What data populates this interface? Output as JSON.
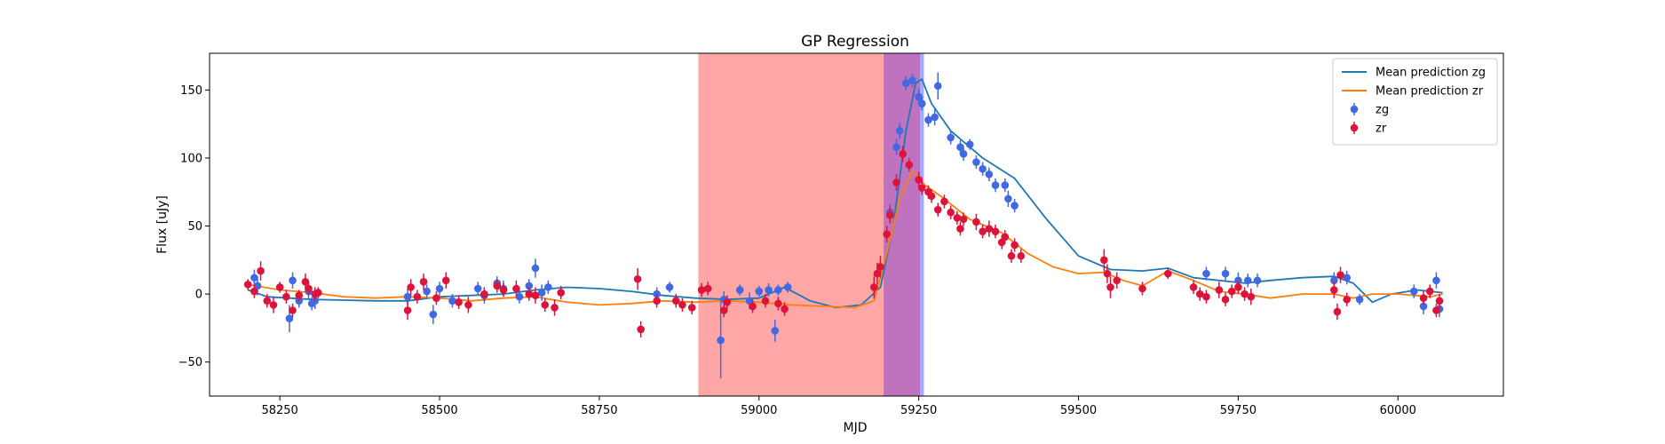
{
  "chart_data": {
    "type": "scatter",
    "title": "GP Regression",
    "xlabel": "MJD",
    "ylabel": "Flux [uJy]",
    "xlim": [
      58140,
      60165
    ],
    "ylim": [
      -75,
      177
    ],
    "xticks": [
      58250,
      58500,
      58750,
      59000,
      59250,
      59500,
      59750,
      60000
    ],
    "yticks": [
      -50,
      0,
      50,
      100,
      150
    ],
    "grid": false,
    "legend_position": "top-right",
    "shaded_regions": [
      {
        "x0": 58905,
        "x1": 59195,
        "color": "#ff0000",
        "opacity": 0.35
      },
      {
        "x0": 59195,
        "x1": 59252,
        "color": "#8b008b",
        "opacity": 0.55
      },
      {
        "x0": 59252,
        "x1": 59258,
        "color": "#6a6aff",
        "opacity": 0.6
      }
    ],
    "lines": [
      {
        "name": "Mean prediction zg",
        "color": "#1f77b4",
        "points": [
          [
            58200,
            3
          ],
          [
            58230,
            -2
          ],
          [
            58300,
            -4
          ],
          [
            58400,
            -5
          ],
          [
            58450,
            -5
          ],
          [
            58500,
            -2
          ],
          [
            58550,
            -1
          ],
          [
            58600,
            0
          ],
          [
            58650,
            3
          ],
          [
            58700,
            5
          ],
          [
            58750,
            4
          ],
          [
            58800,
            2
          ],
          [
            58850,
            -1
          ],
          [
            58900,
            -3
          ],
          [
            58950,
            -4
          ],
          [
            59000,
            -3
          ],
          [
            59040,
            5
          ],
          [
            59080,
            -5
          ],
          [
            59120,
            -10
          ],
          [
            59160,
            -8
          ],
          [
            59190,
            5
          ],
          [
            59210,
            50
          ],
          [
            59230,
            120
          ],
          [
            59245,
            155
          ],
          [
            59255,
            158
          ],
          [
            59270,
            140
          ],
          [
            59300,
            120
          ],
          [
            59350,
            100
          ],
          [
            59400,
            85
          ],
          [
            59450,
            55
          ],
          [
            59500,
            28
          ],
          [
            59550,
            18
          ],
          [
            59600,
            17
          ],
          [
            59640,
            19
          ],
          [
            59680,
            12
          ],
          [
            59720,
            10
          ],
          [
            59760,
            8
          ],
          [
            59800,
            10
          ],
          [
            59850,
            12
          ],
          [
            59900,
            13
          ],
          [
            59930,
            8
          ],
          [
            59960,
            -6
          ],
          [
            59990,
            0
          ],
          [
            60030,
            3
          ],
          [
            60070,
            1
          ]
        ]
      },
      {
        "name": "Mean prediction zr",
        "color": "#ff7f0e",
        "points": [
          [
            58200,
            7
          ],
          [
            58250,
            3
          ],
          [
            58300,
            1
          ],
          [
            58350,
            -2
          ],
          [
            58400,
            -3
          ],
          [
            58450,
            -2
          ],
          [
            58500,
            -3
          ],
          [
            58550,
            -5
          ],
          [
            58600,
            -3
          ],
          [
            58650,
            -2
          ],
          [
            58700,
            -6
          ],
          [
            58750,
            -8
          ],
          [
            58800,
            -7
          ],
          [
            58850,
            -5
          ],
          [
            58900,
            -6
          ],
          [
            58950,
            -5
          ],
          [
            59000,
            -6
          ],
          [
            59050,
            -8
          ],
          [
            59100,
            -9
          ],
          [
            59150,
            -10
          ],
          [
            59180,
            -5
          ],
          [
            59200,
            30
          ],
          [
            59220,
            70
          ],
          [
            59240,
            90
          ],
          [
            59260,
            80
          ],
          [
            59290,
            70
          ],
          [
            59330,
            55
          ],
          [
            59380,
            45
          ],
          [
            59420,
            30
          ],
          [
            59460,
            20
          ],
          [
            59500,
            15
          ],
          [
            59540,
            16
          ],
          [
            59570,
            10
          ],
          [
            59600,
            6
          ],
          [
            59640,
            17
          ],
          [
            59680,
            10
          ],
          [
            59720,
            2
          ],
          [
            59760,
            0
          ],
          [
            59800,
            -3
          ],
          [
            59850,
            0
          ],
          [
            59900,
            0
          ],
          [
            59930,
            -3
          ],
          [
            59960,
            0
          ],
          [
            60000,
            0
          ],
          [
            60050,
            -2
          ],
          [
            60070,
            0
          ]
        ]
      }
    ],
    "series": [
      {
        "name": "zg",
        "color": "#4169e1",
        "points": [
          [
            58210,
            12,
            6
          ],
          [
            58215,
            6,
            7
          ],
          [
            58265,
            -18,
            10
          ],
          [
            58270,
            10,
            6
          ],
          [
            58280,
            -5,
            5
          ],
          [
            58295,
            2,
            6
          ],
          [
            58300,
            -7,
            5
          ],
          [
            58305,
            -5,
            6
          ],
          [
            58450,
            -2,
            6
          ],
          [
            58480,
            2,
            5
          ],
          [
            58490,
            -15,
            7
          ],
          [
            58500,
            4,
            5
          ],
          [
            58520,
            -5,
            5
          ],
          [
            58560,
            4,
            5
          ],
          [
            58570,
            -1,
            6
          ],
          [
            58590,
            8,
            5
          ],
          [
            58600,
            4,
            6
          ],
          [
            58625,
            -2,
            5
          ],
          [
            58640,
            6,
            5
          ],
          [
            58650,
            19,
            7
          ],
          [
            58660,
            1,
            6
          ],
          [
            58670,
            5,
            5
          ],
          [
            58840,
            0,
            5
          ],
          [
            58860,
            5,
            4
          ],
          [
            58940,
            -34,
            28
          ],
          [
            58945,
            -4,
            6
          ],
          [
            58970,
            3,
            4
          ],
          [
            58985,
            -5,
            6
          ],
          [
            59000,
            2,
            4
          ],
          [
            59015,
            3,
            5
          ],
          [
            59025,
            -27,
            8
          ],
          [
            59030,
            3,
            4
          ],
          [
            59045,
            5,
            4
          ],
          [
            59205,
            60,
            6
          ],
          [
            59215,
            108,
            6
          ],
          [
            59220,
            120,
            6
          ],
          [
            59230,
            155,
            5
          ],
          [
            59240,
            157,
            5
          ],
          [
            59250,
            145,
            6
          ],
          [
            59255,
            140,
            5
          ],
          [
            59265,
            128,
            5
          ],
          [
            59275,
            130,
            6
          ],
          [
            59280,
            153,
            10
          ],
          [
            59300,
            115,
            5
          ],
          [
            59315,
            108,
            5
          ],
          [
            59320,
            103,
            5
          ],
          [
            59330,
            110,
            4
          ],
          [
            59340,
            97,
            5
          ],
          [
            59350,
            92,
            5
          ],
          [
            59360,
            88,
            5
          ],
          [
            59370,
            80,
            5
          ],
          [
            59385,
            80,
            5
          ],
          [
            59390,
            70,
            6
          ],
          [
            59400,
            65,
            5
          ],
          [
            59700,
            15,
            5
          ],
          [
            59730,
            15,
            5
          ],
          [
            59750,
            10,
            6
          ],
          [
            59765,
            10,
            5
          ],
          [
            59780,
            10,
            5
          ],
          [
            59900,
            10,
            6
          ],
          [
            59920,
            12,
            5
          ],
          [
            59940,
            -4,
            4
          ],
          [
            60025,
            2,
            5
          ],
          [
            60040,
            -9,
            6
          ],
          [
            60060,
            10,
            6
          ],
          [
            60065,
            -11,
            6
          ]
        ]
      },
      {
        "name": "zr",
        "color": "#dc143c",
        "points": [
          [
            58200,
            7,
            4
          ],
          [
            58210,
            2,
            5
          ],
          [
            58220,
            17,
            7
          ],
          [
            58230,
            -5,
            5
          ],
          [
            58240,
            -8,
            6
          ],
          [
            58250,
            5,
            4
          ],
          [
            58260,
            -2,
            5
          ],
          [
            58270,
            -12,
            5
          ],
          [
            58280,
            -1,
            4
          ],
          [
            58290,
            9,
            6
          ],
          [
            58295,
            4,
            5
          ],
          [
            58305,
            0,
            5
          ],
          [
            58310,
            1,
            4
          ],
          [
            58450,
            -12,
            7
          ],
          [
            58455,
            5,
            6
          ],
          [
            58465,
            -2,
            5
          ],
          [
            58475,
            9,
            6
          ],
          [
            58495,
            -3,
            5
          ],
          [
            58510,
            10,
            6
          ],
          [
            58530,
            -6,
            5
          ],
          [
            58545,
            -8,
            6
          ],
          [
            58570,
            0,
            5
          ],
          [
            58590,
            6,
            5
          ],
          [
            58600,
            3,
            5
          ],
          [
            58620,
            4,
            6
          ],
          [
            58640,
            0,
            5
          ],
          [
            58650,
            -1,
            6
          ],
          [
            58665,
            -8,
            5
          ],
          [
            58680,
            -10,
            6
          ],
          [
            58690,
            1,
            5
          ],
          [
            58810,
            11,
            8
          ],
          [
            58815,
            -26,
            6
          ],
          [
            58840,
            -5,
            5
          ],
          [
            58870,
            -5,
            5
          ],
          [
            58880,
            -8,
            5
          ],
          [
            58895,
            -10,
            5
          ],
          [
            58910,
            3,
            5
          ],
          [
            58920,
            4,
            5
          ],
          [
            58945,
            -12,
            5
          ],
          [
            58950,
            -6,
            5
          ],
          [
            58990,
            -9,
            5
          ],
          [
            59010,
            -5,
            5
          ],
          [
            59030,
            -7,
            5
          ],
          [
            59040,
            -11,
            5
          ],
          [
            59180,
            5,
            8
          ],
          [
            59185,
            15,
            8
          ],
          [
            59190,
            20,
            8
          ],
          [
            59200,
            44,
            6
          ],
          [
            59205,
            58,
            6
          ],
          [
            59215,
            82,
            6
          ],
          [
            59225,
            103,
            6
          ],
          [
            59235,
            95,
            5
          ],
          [
            59250,
            84,
            6
          ],
          [
            59255,
            78,
            5
          ],
          [
            59265,
            75,
            5
          ],
          [
            59270,
            72,
            5
          ],
          [
            59280,
            62,
            5
          ],
          [
            59290,
            68,
            5
          ],
          [
            59300,
            60,
            5
          ],
          [
            59310,
            56,
            5
          ],
          [
            59315,
            48,
            5
          ],
          [
            59320,
            55,
            5
          ],
          [
            59340,
            53,
            6
          ],
          [
            59350,
            46,
            5
          ],
          [
            59360,
            48,
            6
          ],
          [
            59370,
            46,
            5
          ],
          [
            59380,
            38,
            5
          ],
          [
            59385,
            42,
            5
          ],
          [
            59395,
            28,
            5
          ],
          [
            59400,
            36,
            5
          ],
          [
            59410,
            28,
            5
          ],
          [
            59540,
            25,
            8
          ],
          [
            59545,
            15,
            7
          ],
          [
            59550,
            5,
            8
          ],
          [
            59560,
            10,
            6
          ],
          [
            59600,
            4,
            5
          ],
          [
            59640,
            15,
            4
          ],
          [
            59680,
            5,
            5
          ],
          [
            59690,
            0,
            5
          ],
          [
            59700,
            -2,
            5
          ],
          [
            59720,
            3,
            6
          ],
          [
            59730,
            -4,
            5
          ],
          [
            59740,
            2,
            5
          ],
          [
            59750,
            5,
            5
          ],
          [
            59760,
            0,
            5
          ],
          [
            59770,
            -2,
            6
          ],
          [
            59900,
            3,
            6
          ],
          [
            59905,
            -13,
            6
          ],
          [
            59910,
            14,
            6
          ],
          [
            59920,
            -4,
            5
          ],
          [
            60040,
            -3,
            5
          ],
          [
            60050,
            2,
            5
          ],
          [
            60060,
            -12,
            5
          ],
          [
            60065,
            -5,
            5
          ]
        ]
      }
    ],
    "legend": [
      {
        "label": "Mean prediction zg",
        "kind": "line",
        "color": "#1f77b4"
      },
      {
        "label": "Mean prediction zr",
        "kind": "line",
        "color": "#ff7f0e"
      },
      {
        "label": "zg",
        "kind": "errorbar",
        "color": "#4169e1"
      },
      {
        "label": "zr",
        "kind": "errorbar",
        "color": "#dc143c"
      }
    ]
  }
}
